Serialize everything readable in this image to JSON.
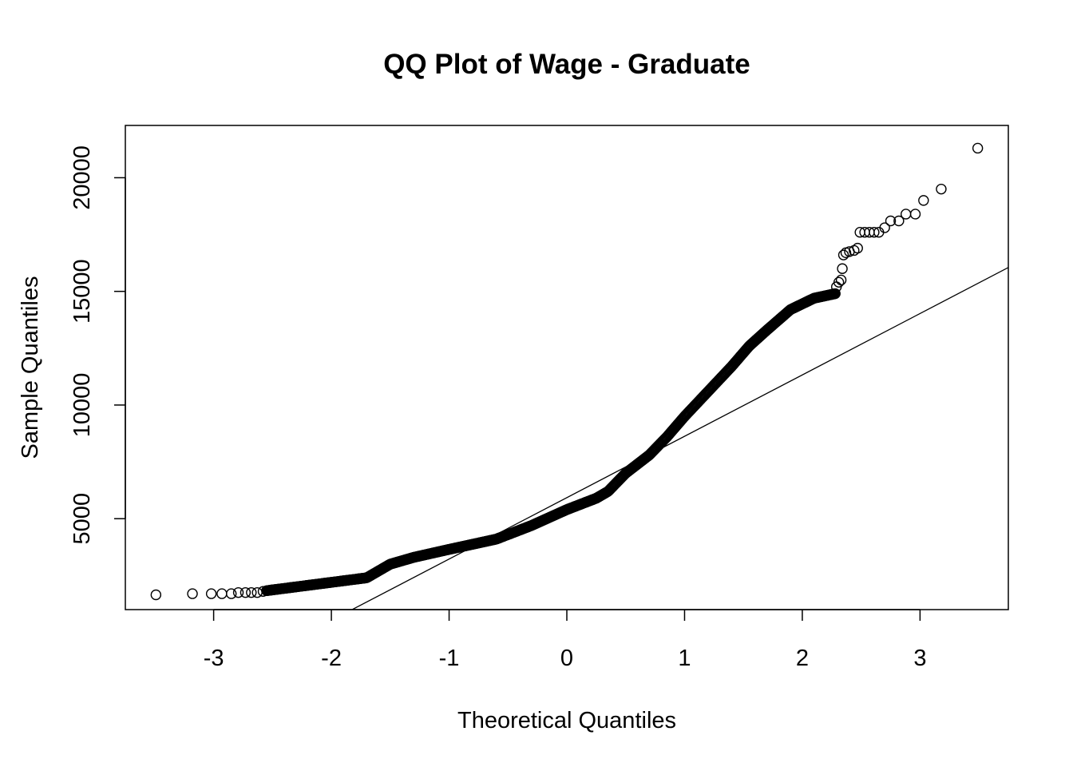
{
  "chart_data": {
    "type": "scatter",
    "title": "QQ Plot of Wage - Graduate",
    "xlabel": "Theoretical Quantiles",
    "ylabel": "Sample Quantiles",
    "xlim": [
      -3.75,
      3.75
    ],
    "ylim": [
      1000,
      22300
    ],
    "x_ticks": [
      -3,
      -2,
      -1,
      0,
      1,
      2,
      3
    ],
    "x_tick_labels": [
      "-3",
      "-2",
      "-1",
      "0",
      "1",
      "2",
      "3"
    ],
    "y_ticks": [
      5000,
      10000,
      15000,
      20000
    ],
    "y_tick_labels": [
      "5000",
      "10000",
      "15000",
      "20000"
    ],
    "grid": false,
    "legend": "none",
    "point_marker": "open-circle",
    "reference_line": {
      "slope": 2700,
      "intercept": 5925
    },
    "curve_knots": [
      [
        -3.49,
        1700
      ],
      [
        -3.0,
        1720
      ],
      [
        -2.6,
        1800
      ],
      [
        -2.3,
        2000
      ],
      [
        -2.0,
        2200
      ],
      [
        -1.7,
        2400
      ],
      [
        -1.5,
        3000
      ],
      [
        -1.3,
        3300
      ],
      [
        -1.0,
        3650
      ],
      [
        -0.6,
        4100
      ],
      [
        -0.3,
        4700
      ],
      [
        0.0,
        5400
      ],
      [
        0.25,
        5900
      ],
      [
        0.35,
        6200
      ],
      [
        0.5,
        7000
      ],
      [
        0.7,
        7800
      ],
      [
        0.85,
        8600
      ],
      [
        1.0,
        9500
      ],
      [
        1.2,
        10600
      ],
      [
        1.4,
        11700
      ],
      [
        1.55,
        12600
      ],
      [
        1.7,
        13300
      ],
      [
        1.9,
        14200
      ],
      [
        2.1,
        14700
      ],
      [
        2.28,
        14900
      ]
    ],
    "tail_points": [
      [
        2.29,
        15200
      ],
      [
        2.31,
        15400
      ],
      [
        2.33,
        15500
      ],
      [
        2.34,
        16000
      ],
      [
        2.35,
        16600
      ],
      [
        2.37,
        16700
      ],
      [
        2.4,
        16750
      ],
      [
        2.44,
        16800
      ],
      [
        2.47,
        16900
      ],
      [
        2.49,
        17600
      ],
      [
        2.53,
        17600
      ],
      [
        2.57,
        17600
      ],
      [
        2.61,
        17600
      ],
      [
        2.65,
        17600
      ],
      [
        2.7,
        17800
      ],
      [
        2.75,
        18100
      ],
      [
        2.82,
        18100
      ],
      [
        2.88,
        18400
      ],
      [
        2.96,
        18400
      ],
      [
        3.03,
        19000
      ],
      [
        3.18,
        19500
      ],
      [
        3.49,
        21300
      ]
    ],
    "lower_tail_points": [
      [
        -3.49,
        1650
      ],
      [
        -3.18,
        1700
      ],
      [
        -3.02,
        1700
      ],
      [
        -2.93,
        1700
      ],
      [
        -2.85,
        1700
      ],
      [
        -2.79,
        1750
      ],
      [
        -2.73,
        1750
      ],
      [
        -2.68,
        1750
      ],
      [
        -2.63,
        1750
      ],
      [
        -2.58,
        1800
      ]
    ]
  }
}
